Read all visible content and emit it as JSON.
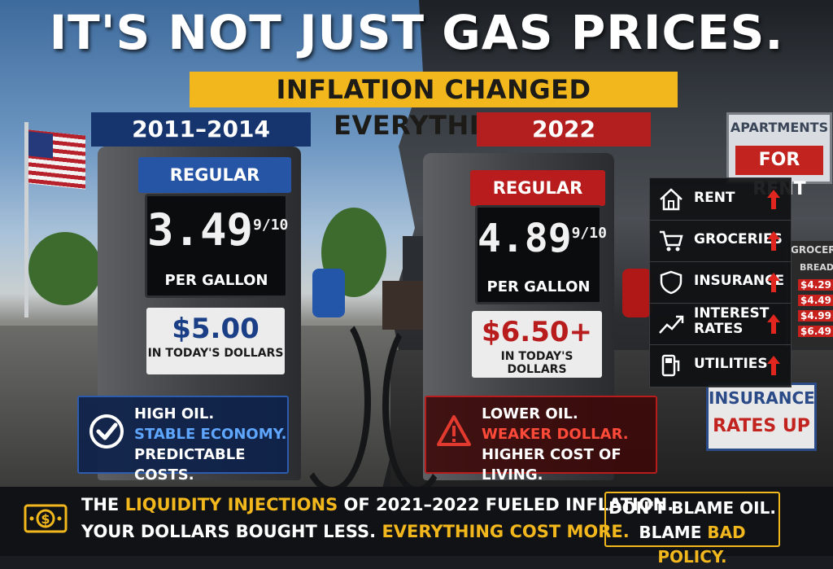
{
  "headline": "IT'S NOT JUST GAS PRICES.",
  "subheadline": "INFLATION CHANGED EVERYTHING.",
  "left": {
    "era": "2011–2014",
    "grade": "REGULAR",
    "price": "3.49",
    "fraction": "9/10",
    "per_gallon": "PER GALLON",
    "todays_amount": "$5.00",
    "todays_label": "IN TODAY'S DOLLARS",
    "note": [
      "HIGH OIL.",
      "STABLE ECONOMY.",
      "PREDICTABLE COSTS."
    ],
    "accent_color": "#2755a5"
  },
  "right": {
    "era": "2022",
    "grade": "REGULAR",
    "price": "4.89",
    "fraction": "9/10",
    "per_gallon": "PER GALLON",
    "todays_amount": "$6.50+",
    "todays_label": "IN TODAY'S DOLLARS",
    "note": [
      "LOWER OIL.",
      "WEAKER DOLLAR.",
      "HIGHER COST OF LIVING."
    ],
    "accent_color": "#b81c1c"
  },
  "cost_items": [
    {
      "label": "RENT",
      "icon": "house-icon"
    },
    {
      "label": "GROCERIES",
      "icon": "cart-icon"
    },
    {
      "label": "INSURANCE",
      "icon": "shield-icon"
    },
    {
      "label": "INTEREST RATES",
      "line1": "INTEREST",
      "line2": "RATES",
      "icon": "chart-icon"
    },
    {
      "label": "UTILITIES",
      "icon": "fuel-meter-icon"
    }
  ],
  "signs": {
    "apartments": {
      "line1": "APARTMENTS",
      "line2": "FOR RENT"
    },
    "grocery": {
      "title": "GROCERY",
      "item": "BREAD",
      "prices": [
        "$4.29",
        "$4.49",
        "$4.99",
        "$6.49"
      ]
    },
    "insurance": {
      "line1": "INSURANCE",
      "line2": "RATES UP"
    }
  },
  "footer": {
    "line1_pre": "THE ",
    "line1_highlight": "LIQUIDITY INJECTIONS",
    "line1_post": " OF 2021–2022 FUELED INFLATION.",
    "line2_pre": "YOUR DOLLARS BOUGHT LESS. ",
    "line2_highlight": "EVERYTHING COST MORE.",
    "blame_line1": "DON'T BLAME OIL.",
    "blame_pre": "BLAME ",
    "blame_highlight": "BAD POLICY."
  },
  "colors": {
    "yellow": "#f1b71c",
    "blue": "#16356e",
    "red": "#b31e1e"
  }
}
